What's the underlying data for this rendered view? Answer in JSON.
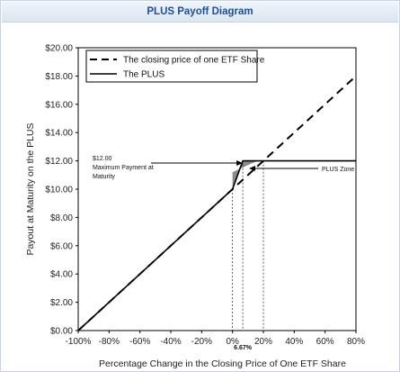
{
  "header": {
    "title": "PLUS Payoff Diagram"
  },
  "chart_data": {
    "type": "line",
    "xlabel": "Percentage Change in the Closing Price of One ETF Share",
    "ylabel": "Payout at Maturity on the PLUS",
    "xlim": [
      -100,
      80
    ],
    "ylim": [
      0,
      20
    ],
    "x_ticks": [
      "-100%",
      "-80%",
      "-60%",
      "-40%",
      "-20%",
      "0%",
      "20%",
      "40%",
      "60%",
      "80%"
    ],
    "y_ticks": [
      "$0.00",
      "$2.00",
      "$4.00",
      "$6.00",
      "$8.00",
      "$10.00",
      "$12.00",
      "$14.00",
      "$16.00",
      "$18.00",
      "$20.00"
    ],
    "grid": false,
    "legend_position": "top-left",
    "series": [
      {
        "name": "The closing price of one ETF Share",
        "style": "dashed",
        "x": [
          -100,
          80
        ],
        "y": [
          0,
          18
        ]
      },
      {
        "name": "The PLUS",
        "style": "solid",
        "x": [
          -100,
          0,
          6.67,
          80
        ],
        "y": [
          0,
          10,
          12,
          12
        ]
      }
    ],
    "annotations": {
      "max_payment_value": "$12.00",
      "max_payment_label": "Maximum Payment at Maturity",
      "zone_label": "PLUS Zone",
      "cap_label": "6.67%",
      "cap_x": 6.67,
      "cap_y": 12,
      "zone_x": [
        0,
        20
      ]
    }
  }
}
